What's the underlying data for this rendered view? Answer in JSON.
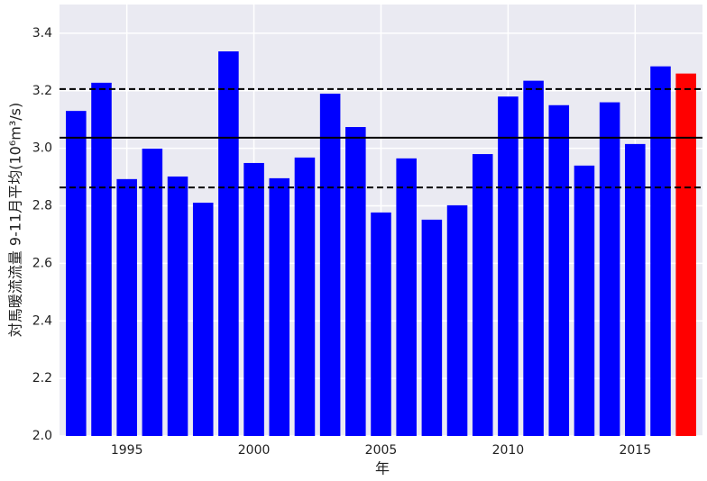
{
  "chart_data": {
    "type": "bar",
    "x": [
      1993,
      1994,
      1995,
      1996,
      1997,
      1998,
      1999,
      2000,
      2001,
      2002,
      2003,
      2004,
      2005,
      2006,
      2007,
      2008,
      2009,
      2010,
      2011,
      2012,
      2013,
      2014,
      2015,
      2016,
      2017
    ],
    "values": [
      3.13,
      3.228,
      2.893,
      2.999,
      2.902,
      2.811,
      3.337,
      2.949,
      2.896,
      2.968,
      3.19,
      3.074,
      2.777,
      2.965,
      2.752,
      2.802,
      2.98,
      3.18,
      3.235,
      3.15,
      2.94,
      3.16,
      3.015,
      3.285,
      3.26
    ],
    "colors": [
      "#0000ff",
      "#0000ff",
      "#0000ff",
      "#0000ff",
      "#0000ff",
      "#0000ff",
      "#0000ff",
      "#0000ff",
      "#0000ff",
      "#0000ff",
      "#0000ff",
      "#0000ff",
      "#0000ff",
      "#0000ff",
      "#0000ff",
      "#0000ff",
      "#0000ff",
      "#0000ff",
      "#0000ff",
      "#0000ff",
      "#0000ff",
      "#0000ff",
      "#0000ff",
      "#0000ff",
      "#ff0000"
    ],
    "bar_width": 0.8,
    "xlim": [
      1992.35,
      2017.65
    ],
    "xticks": [
      1995,
      2000,
      2005,
      2010,
      2015
    ],
    "ylim": [
      2.0,
      3.5
    ],
    "yticks": [
      {
        "value": 2,
        "label": "2.0"
      },
      2.2,
      2.4,
      2.6,
      2.8,
      {
        "value": 3,
        "label": "3.0"
      },
      3.2,
      3.4
    ],
    "hlines": [
      {
        "value": 3.037,
        "dash": false,
        "color": "#000000"
      },
      {
        "value": 3.206,
        "dash": true,
        "color": "#000000"
      },
      {
        "value": 2.864,
        "dash": true,
        "color": "#000000"
      }
    ],
    "grid": true,
    "xlabel": "年",
    "ylabel": "対馬暖流流量 9-11月平均(10⁶m³/s)"
  }
}
